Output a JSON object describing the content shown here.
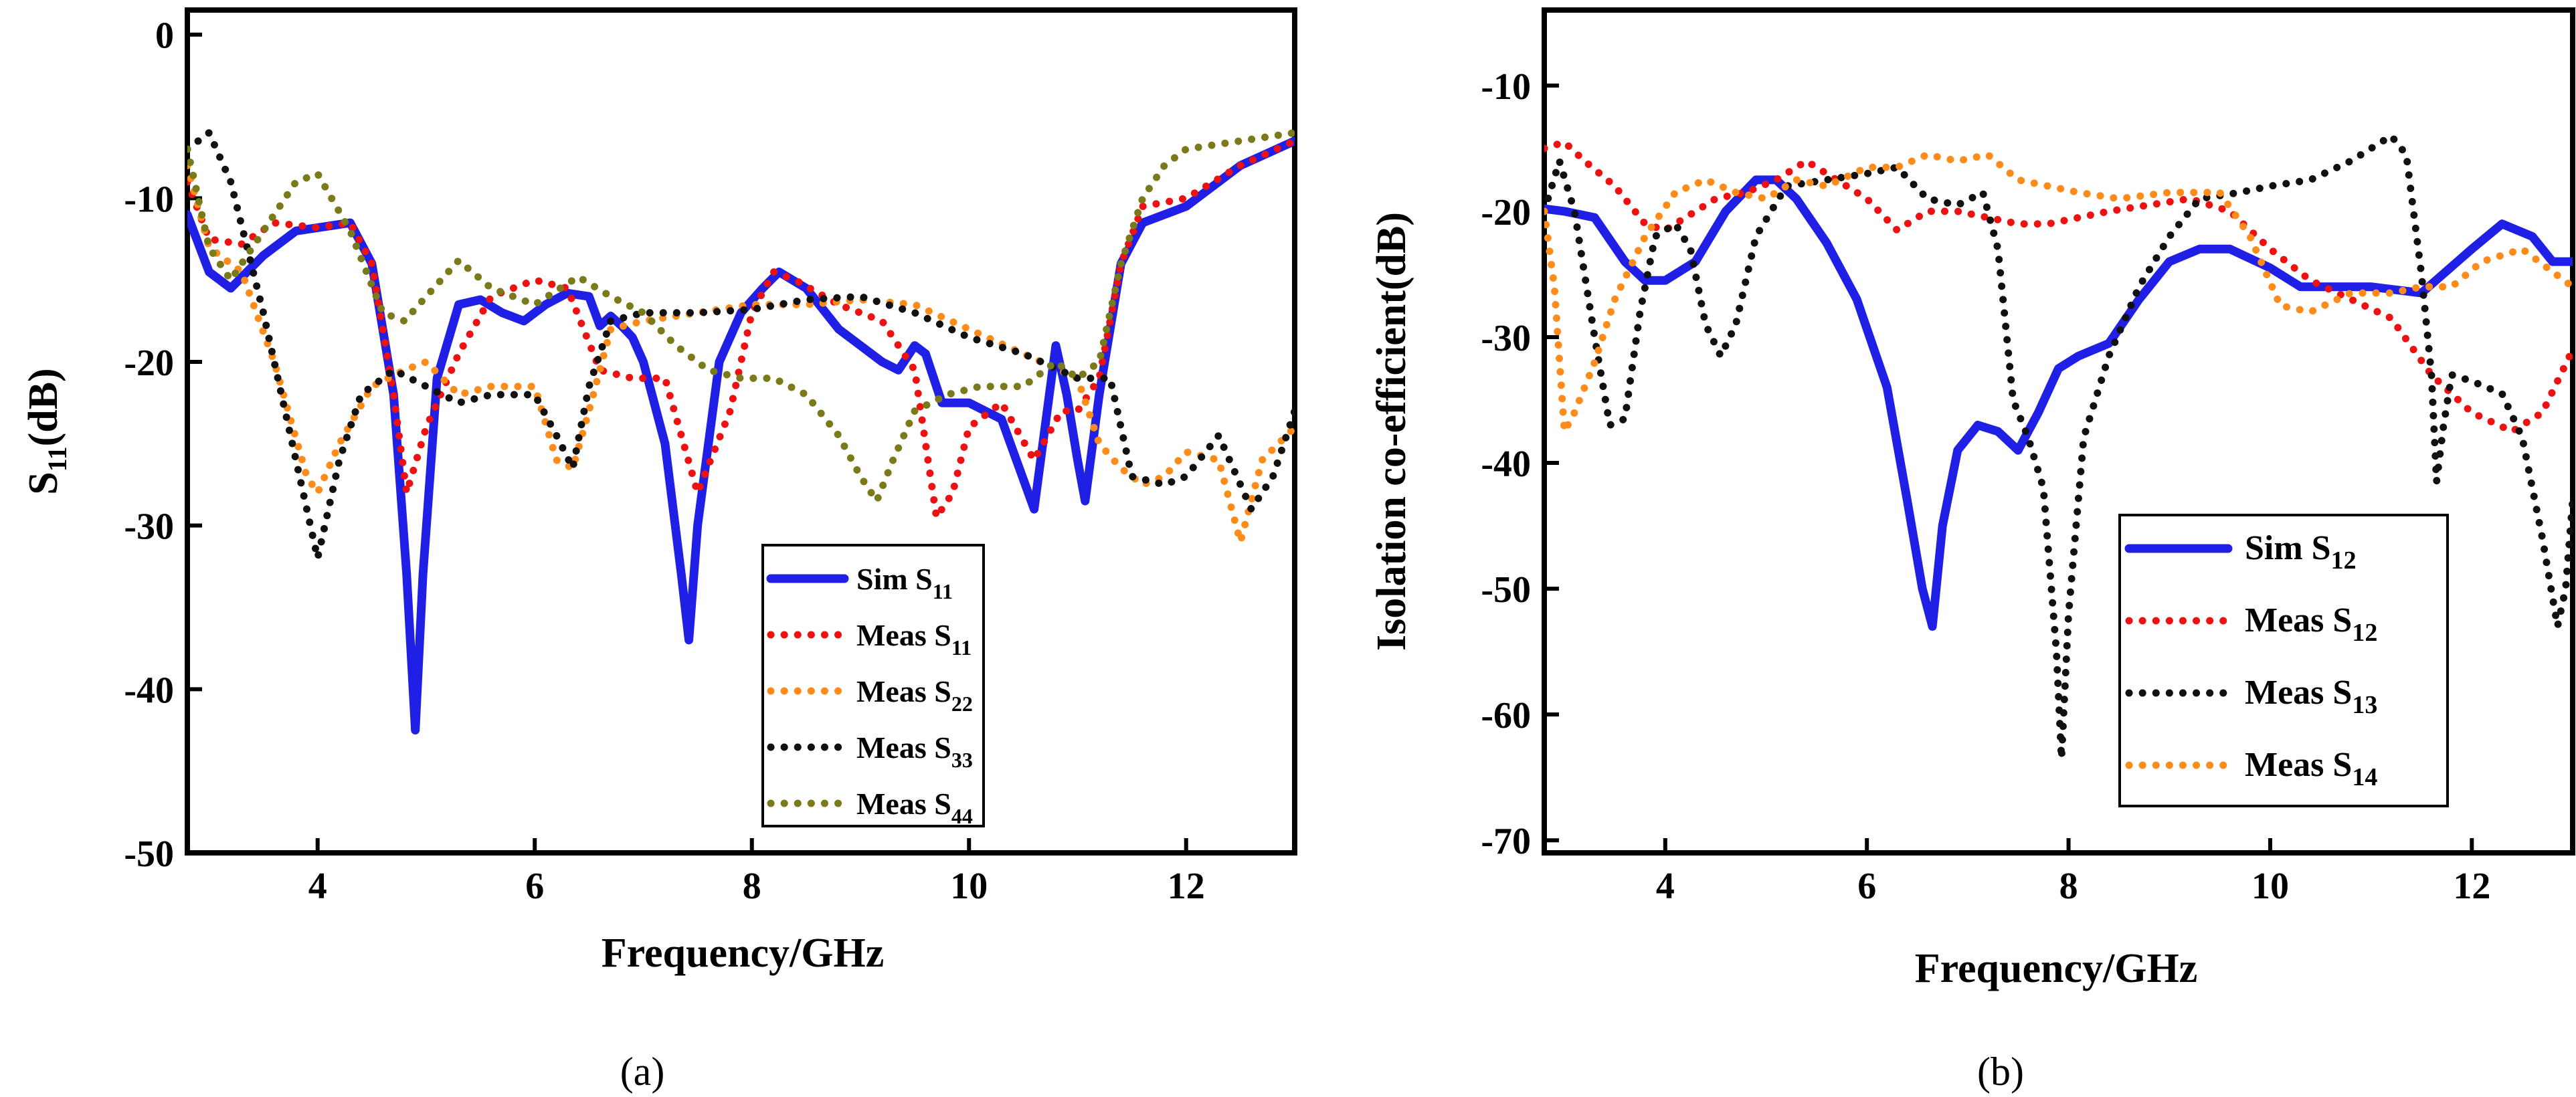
{
  "chart_data": [
    {
      "type": "line",
      "caption_letter": "a",
      "xlabel": "Frequency/GHz",
      "ylabel_main": "S",
      "ylabel_sub": "11",
      "ylabel_tail": "(dB)",
      "xlim": [
        2.8,
        13
      ],
      "ylim": [
        -50,
        1.5
      ],
      "xticks": [
        4,
        6,
        8,
        10,
        12
      ],
      "yticks": [
        0,
        -10,
        -20,
        -30,
        -40,
        -50
      ],
      "series": [
        {
          "name": "Sim S11",
          "label_main": "Sim S",
          "label_sub": "11",
          "color": "#1f1fe6",
          "style": "solid",
          "x": [
            2.8,
            3.0,
            3.2,
            3.5,
            3.8,
            4.0,
            4.3,
            4.5,
            4.7,
            4.82,
            4.9,
            4.97,
            5.1,
            5.3,
            5.5,
            5.7,
            5.9,
            6.1,
            6.3,
            6.5,
            6.6,
            6.7,
            6.8,
            6.9,
            7.0,
            7.2,
            7.35,
            7.42,
            7.5,
            7.7,
            7.9,
            8.1,
            8.25,
            8.5,
            8.8,
            9.2,
            9.35,
            9.5,
            9.6,
            9.75,
            10.0,
            10.3,
            10.6,
            10.8,
            10.9,
            11.0,
            11.07,
            11.2,
            11.4,
            11.6,
            12.0,
            12.5,
            13.0
          ],
          "y": [
            -11,
            -14.5,
            -15.5,
            -13.5,
            -12,
            -11.8,
            -11.5,
            -14,
            -22,
            -33,
            -42.5,
            -33,
            -21,
            -16.5,
            -16.2,
            -17,
            -17.5,
            -16.5,
            -15.8,
            -16,
            -17.8,
            -17.2,
            -17.8,
            -18.5,
            -20,
            -25,
            -33,
            -37,
            -30,
            -20,
            -17,
            -15.5,
            -14.5,
            -15.5,
            -18,
            -20,
            -20.5,
            -19,
            -19.5,
            -22.5,
            -22.5,
            -23.5,
            -29,
            -19,
            -22,
            -26,
            -28.5,
            -22,
            -14,
            -11.5,
            -10.5,
            -8,
            -6.5
          ]
        },
        {
          "name": "Meas S11",
          "label_main": "Meas S",
          "label_sub": "11",
          "color": "#ee1111",
          "style": "dotted",
          "x": [
            2.8,
            3.0,
            3.3,
            3.6,
            4.0,
            4.3,
            4.5,
            4.7,
            4.82,
            5.0,
            5.3,
            5.6,
            6.0,
            6.3,
            6.6,
            6.9,
            7.0,
            7.2,
            7.5,
            7.8,
            8.0,
            8.2,
            8.4,
            8.8,
            9.2,
            9.5,
            9.7,
            9.85,
            10.0,
            10.3,
            10.6,
            10.85,
            11.0,
            11.2,
            11.4,
            11.6,
            12.0,
            12.5,
            13.0
          ],
          "y": [
            -9,
            -12.5,
            -12.8,
            -11.5,
            -11.8,
            -11.5,
            -14,
            -22,
            -28,
            -24,
            -19.5,
            -16,
            -15,
            -15.5,
            -20.5,
            -21,
            -21,
            -21,
            -28,
            -23,
            -17,
            -14.5,
            -15,
            -16.5,
            -17.5,
            -20.5,
            -29.5,
            -28,
            -24,
            -22.5,
            -26,
            -23,
            -23,
            -21,
            -14,
            -10.5,
            -10,
            -8,
            -6.5
          ]
        },
        {
          "name": "Meas S22",
          "label_main": "Meas S",
          "label_sub": "22",
          "color": "#ff8c1a",
          "style": "dotted",
          "x": [
            2.8,
            3.0,
            3.3,
            3.6,
            3.9,
            4.0,
            4.2,
            4.5,
            4.8,
            5.0,
            5.3,
            5.6,
            6.0,
            6.2,
            6.35,
            6.5,
            6.7,
            7.0,
            7.5,
            8.0,
            8.5,
            9.0,
            9.5,
            10.0,
            10.5,
            11.0,
            11.2,
            11.4,
            11.6,
            11.8,
            12.0,
            12.3,
            12.5,
            12.7,
            13.0
          ],
          "y": [
            -8,
            -13,
            -14.5,
            -20,
            -27,
            -28,
            -25,
            -21.5,
            -20.5,
            -20,
            -22,
            -21.5,
            -21.5,
            -26,
            -26.5,
            -23,
            -18,
            -17.5,
            -17,
            -16.5,
            -16.5,
            -16.2,
            -16.5,
            -18,
            -19.5,
            -21,
            -25,
            -26.5,
            -27.5,
            -27,
            -25.5,
            -26,
            -31,
            -26,
            -24
          ]
        },
        {
          "name": "Meas S33",
          "label_main": "Meas S",
          "label_sub": "33",
          "color": "#111111",
          "style": "dotted",
          "x": [
            2.8,
            3.0,
            3.2,
            3.5,
            3.8,
            4.0,
            4.2,
            4.4,
            4.7,
            5.0,
            5.3,
            5.6,
            6.0,
            6.2,
            6.35,
            6.5,
            6.7,
            7.0,
            7.5,
            8.0,
            8.5,
            9.0,
            9.5,
            10.0,
            10.5,
            11.0,
            11.3,
            11.5,
            11.8,
            12.0,
            12.3,
            12.6,
            12.8,
            13.0
          ],
          "y": [
            -7,
            -6,
            -9,
            -17,
            -26,
            -32,
            -26,
            -22,
            -20.5,
            -21.5,
            -22.5,
            -22,
            -22,
            -24.5,
            -26.5,
            -21.5,
            -17.5,
            -17,
            -17,
            -16.8,
            -16.2,
            -16,
            -17,
            -18.5,
            -19.5,
            -21,
            -21,
            -27,
            -27.5,
            -27,
            -24.5,
            -29,
            -27,
            -23
          ]
        },
        {
          "name": "Meas S44",
          "label_main": "Meas S",
          "label_sub": "44",
          "color": "#7a7a1a",
          "style": "dotted",
          "x": [
            2.8,
            3.0,
            3.2,
            3.5,
            3.8,
            4.0,
            4.3,
            4.6,
            4.8,
            5.0,
            5.3,
            5.6,
            6.0,
            6.4,
            6.7,
            7.0,
            7.3,
            7.6,
            7.9,
            8.2,
            8.5,
            8.8,
            9.0,
            9.15,
            9.3,
            9.5,
            9.8,
            10.1,
            10.5,
            10.8,
            11.0,
            11.2,
            11.4,
            11.6,
            11.8,
            12.0,
            12.5,
            13.0
          ],
          "y": [
            -7,
            -13,
            -15,
            -12,
            -9,
            -8.5,
            -12,
            -17,
            -17.5,
            -16,
            -13.8,
            -15.5,
            -16.5,
            -14.8,
            -16,
            -17,
            -19,
            -20.5,
            -21,
            -21,
            -22,
            -24.5,
            -27,
            -28.5,
            -26,
            -23,
            -22,
            -21.5,
            -21.5,
            -20,
            -21,
            -20,
            -14,
            -10,
            -8,
            -7,
            -6.5,
            -6
          ]
        }
      ]
    },
    {
      "type": "line",
      "caption_letter": "b",
      "xlabel": "Frequency/GHz",
      "ylabel": "Isolation co-efficient(dB)",
      "xlim": [
        2.8,
        13
      ],
      "ylim": [
        -71,
        -4
      ],
      "xticks": [
        4,
        6,
        8,
        10,
        12
      ],
      "yticks": [
        -10,
        -20,
        -30,
        -40,
        -50,
        -60,
        -70
      ],
      "series": [
        {
          "name": "Sim S12",
          "label_main": "Sim S",
          "label_sub": "12",
          "color": "#1f1fe6",
          "style": "solid",
          "x": [
            2.8,
            3.0,
            3.3,
            3.6,
            3.8,
            4.0,
            4.3,
            4.6,
            4.9,
            5.1,
            5.3,
            5.6,
            5.9,
            6.2,
            6.4,
            6.55,
            6.65,
            6.75,
            6.9,
            7.1,
            7.3,
            7.5,
            7.7,
            7.9,
            8.1,
            8.4,
            8.7,
            9.0,
            9.3,
            9.6,
            10.0,
            10.3,
            10.6,
            11.0,
            11.5,
            12.0,
            12.3,
            12.6,
            12.8,
            13.0
          ],
          "y": [
            -19.8,
            -20,
            -20.5,
            -24,
            -25.5,
            -25.5,
            -24,
            -20,
            -17.5,
            -17.5,
            -19,
            -22.5,
            -27,
            -34,
            -43,
            -50,
            -53,
            -45,
            -39,
            -37,
            -37.5,
            -39,
            -36,
            -32.5,
            -31.5,
            -30.5,
            -27,
            -24,
            -23,
            -23,
            -24.5,
            -26,
            -26,
            -26,
            -26.5,
            -23,
            -21,
            -22,
            -24,
            -24
          ]
        },
        {
          "name": "Meas S12",
          "label_main": "Meas S",
          "label_sub": "12",
          "color": "#ee1111",
          "style": "dotted",
          "x": [
            2.8,
            3.0,
            3.2,
            3.5,
            3.8,
            4.0,
            4.2,
            4.5,
            4.8,
            5.1,
            5.4,
            5.7,
            6.0,
            6.3,
            6.6,
            6.9,
            7.2,
            7.5,
            7.8,
            8.1,
            8.4,
            8.8,
            9.2,
            9.6,
            10.0,
            10.4,
            10.8,
            11.2,
            11.6,
            12.0,
            12.4,
            12.7,
            13.0
          ],
          "y": [
            -15,
            -14.5,
            -16,
            -18,
            -21,
            -21.5,
            -20.5,
            -19,
            -18.5,
            -17.5,
            -16,
            -17.5,
            -19,
            -21.5,
            -20,
            -20,
            -20.5,
            -21,
            -21,
            -20.5,
            -20,
            -19.5,
            -19,
            -20,
            -23,
            -25.5,
            -27,
            -28.5,
            -33,
            -36,
            -37.5,
            -36,
            -31
          ]
        },
        {
          "name": "Meas S13",
          "label_main": "Meas S",
          "label_sub": "13",
          "color": "#111111",
          "style": "dotted",
          "x": [
            2.8,
            2.95,
            3.1,
            3.3,
            3.45,
            3.6,
            3.75,
            3.9,
            4.1,
            4.25,
            4.4,
            4.55,
            4.7,
            4.9,
            5.2,
            5.6,
            6.0,
            6.3,
            6.6,
            6.9,
            7.15,
            7.3,
            7.45,
            7.6,
            7.75,
            7.88,
            7.93,
            8.0,
            8.15,
            8.4,
            8.7,
            9.0,
            9.3,
            9.7,
            10.0,
            10.4,
            10.8,
            11.2,
            11.35,
            11.5,
            11.6,
            11.65,
            11.72,
            11.8,
            12.0,
            12.3,
            12.5,
            12.7,
            12.85,
            12.93,
            13.0
          ],
          "y": [
            -20,
            -16,
            -20,
            -30,
            -37,
            -36.5,
            -28,
            -22,
            -21,
            -23,
            -29,
            -31.5,
            -29,
            -22,
            -18,
            -17.5,
            -17,
            -16.5,
            -19,
            -19.5,
            -18.5,
            -23,
            -35,
            -38,
            -42,
            -55,
            -63.5,
            -52,
            -38,
            -31.5,
            -26,
            -22,
            -19,
            -18.5,
            -18,
            -17.5,
            -16,
            -14,
            -15.5,
            -25,
            -33,
            -41.5,
            -37,
            -33,
            -33.5,
            -34.5,
            -38,
            -46,
            -53,
            -50,
            -43
          ]
        },
        {
          "name": "Meas S14",
          "label_main": "Meas S",
          "label_sub": "14",
          "color": "#ff8c1a",
          "style": "dotted",
          "x": [
            2.8,
            2.9,
            3.0,
            3.1,
            3.3,
            3.5,
            3.8,
            4.1,
            4.4,
            4.7,
            5.0,
            5.3,
            5.6,
            6.0,
            6.3,
            6.6,
            6.9,
            7.2,
            7.5,
            7.8,
            8.1,
            8.5,
            9.0,
            9.5,
            9.8,
            10.1,
            10.4,
            10.8,
            11.2,
            11.5,
            11.8,
            12.1,
            12.5,
            13.0
          ],
          "y": [
            -20,
            -26,
            -37.5,
            -36,
            -32,
            -27,
            -22,
            -18.5,
            -17.5,
            -18.5,
            -19,
            -17.5,
            -18,
            -16.5,
            -16.5,
            -15.5,
            -16,
            -15.5,
            -17.5,
            -18,
            -18.5,
            -19,
            -18.5,
            -18.5,
            -22,
            -27.5,
            -28,
            -26.5,
            -26.5,
            -26,
            -26,
            -24,
            -23,
            -26
          ]
        }
      ]
    }
  ]
}
